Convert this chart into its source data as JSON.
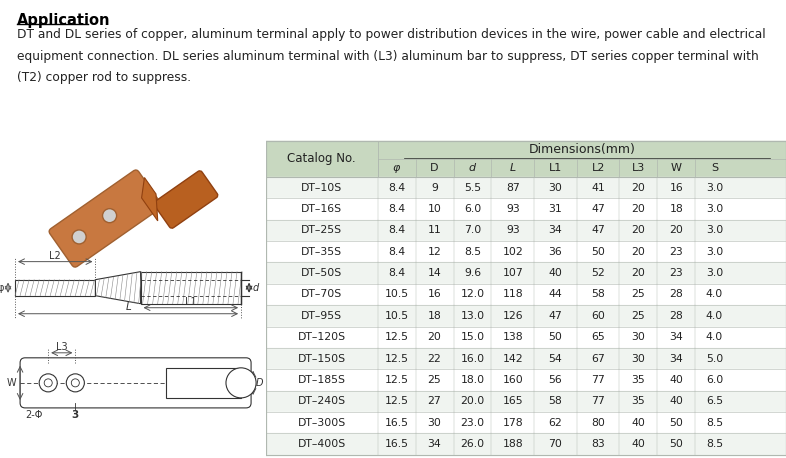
{
  "title": "Application",
  "description_line1": "DT and DL series of copper, aluminum terminal apply to power distribution devices in the wire, power cable and electrical",
  "description_line2": "equipment connection. DL series aluminum terminal with (L3) aluminum bar to suppress, DT series copper terminal with",
  "description_line3": "(T2) copper rod to suppress.",
  "table_header_top": "Dimensions(mm)",
  "table_columns": [
    "Catalog No.",
    "φ",
    "D",
    "d",
    "L",
    "L1",
    "L2",
    "L3",
    "W",
    "S"
  ],
  "table_data": [
    [
      "DT–10S",
      "8.4",
      "9",
      "5.5",
      "87",
      "30",
      "41",
      "20",
      "16",
      "3.0"
    ],
    [
      "DT–16S",
      "8.4",
      "10",
      "6.0",
      "93",
      "31",
      "47",
      "20",
      "18",
      "3.0"
    ],
    [
      "DT–25S",
      "8.4",
      "11",
      "7.0",
      "93",
      "34",
      "47",
      "20",
      "20",
      "3.0"
    ],
    [
      "DT–35S",
      "8.4",
      "12",
      "8.5",
      "102",
      "36",
      "50",
      "20",
      "23",
      "3.0"
    ],
    [
      "DT–50S",
      "8.4",
      "14",
      "9.6",
      "107",
      "40",
      "52",
      "20",
      "23",
      "3.0"
    ],
    [
      "DT–70S",
      "10.5",
      "16",
      "12.0",
      "118",
      "44",
      "58",
      "25",
      "28",
      "4.0"
    ],
    [
      "DT–95S",
      "10.5",
      "18",
      "13.0",
      "126",
      "47",
      "60",
      "25",
      "28",
      "4.0"
    ],
    [
      "DT–120S",
      "12.5",
      "20",
      "15.0",
      "138",
      "50",
      "65",
      "30",
      "34",
      "4.0"
    ],
    [
      "DT–150S",
      "12.5",
      "22",
      "16.0",
      "142",
      "54",
      "67",
      "30",
      "34",
      "5.0"
    ],
    [
      "DT–185S",
      "12.5",
      "25",
      "18.0",
      "160",
      "56",
      "77",
      "35",
      "40",
      "6.0"
    ],
    [
      "DT–240S",
      "12.5",
      "27",
      "20.0",
      "165",
      "58",
      "77",
      "35",
      "40",
      "6.5"
    ],
    [
      "DT–300S",
      "16.5",
      "30",
      "23.0",
      "178",
      "62",
      "80",
      "40",
      "50",
      "8.5"
    ],
    [
      "DT–400S",
      "16.5",
      "34",
      "26.0",
      "188",
      "70",
      "83",
      "40",
      "50",
      "8.5"
    ]
  ],
  "bg_color": "#ffffff",
  "table_header_bg": "#c8d8c0",
  "table_row_bg_light": "#f0f4f0",
  "table_row_bg_white": "#ffffff",
  "table_border_color": "#b0b8b0",
  "header_text_color": "#222222",
  "cell_text_color": "#222222",
  "title_color": "#000000",
  "desc_color": "#222222",
  "copper_color": "#c87840",
  "diagram_line_color": "#333333"
}
